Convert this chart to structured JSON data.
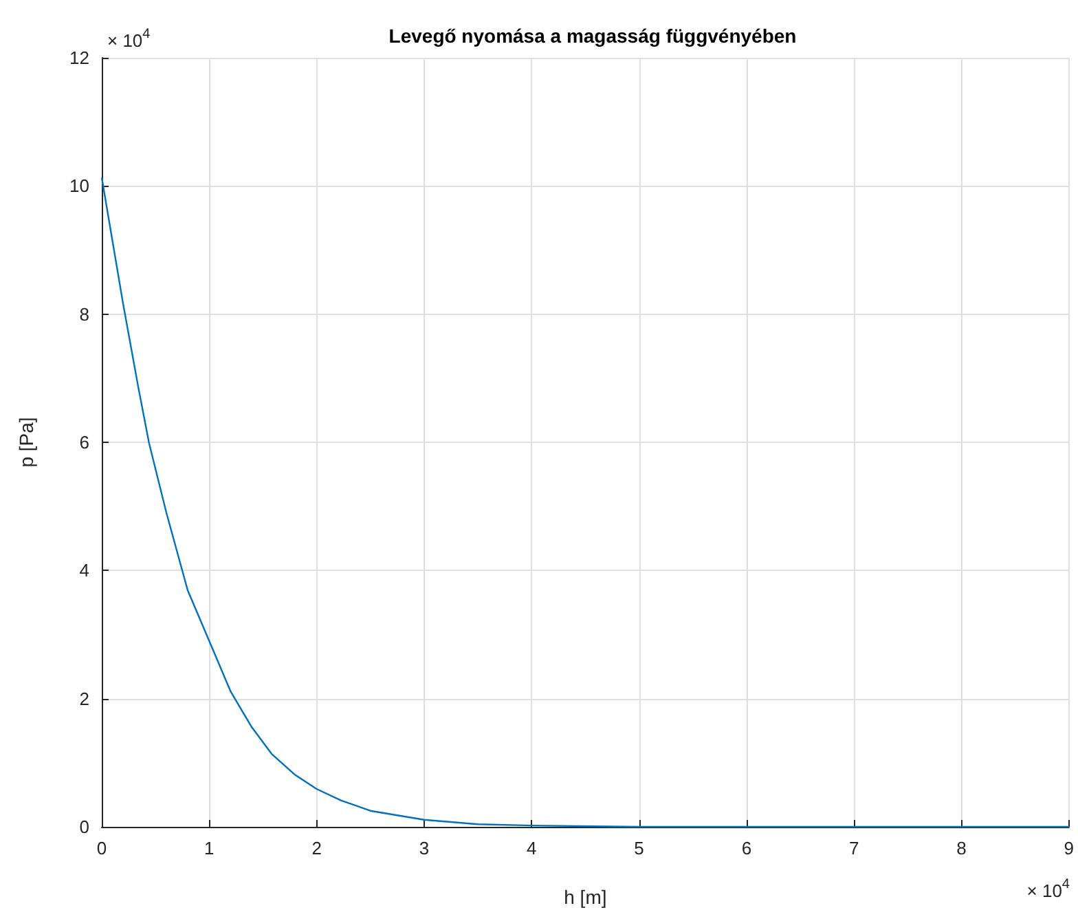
{
  "chart_data": {
    "type": "line",
    "title": "Levegő nyomása a magasság függvényében",
    "xlabel": "h [m]",
    "ylabel": "p [Pa]",
    "annotations": [
      "× 10$^{4}$",
      "× 10$^{4}$"
    ],
    "x": [
      0,
      0.2,
      0.34,
      0.44,
      0.6,
      0.8,
      1.0,
      1.2,
      1.39,
      1.58,
      1.8,
      2.0,
      2.23,
      2.5,
      3.0,
      3.5,
      4.0,
      5.0,
      6.0,
      7.0,
      8.0,
      9.0
    ],
    "series": [
      {
        "color": "#0072bd",
        "values": [
          10.13,
          8.15,
          6.86,
          5.99,
          4.91,
          3.69,
          2.9,
          2.11,
          1.57,
          1.14,
          0.81,
          0.59,
          0.41,
          0.25,
          0.11,
          0.04,
          0.02,
          0,
          0,
          0,
          0,
          0
        ]
      }
    ],
    "xlim": [
      0,
      9
    ],
    "ylim": [
      0,
      12
    ],
    "xticks": [
      0,
      1,
      2,
      3,
      4,
      5,
      6,
      7,
      8,
      9
    ],
    "yticks": [
      0,
      2,
      4,
      6,
      8,
      10,
      12
    ],
    "grid": true,
    "marker": "none",
    "line_style": "solid"
  }
}
